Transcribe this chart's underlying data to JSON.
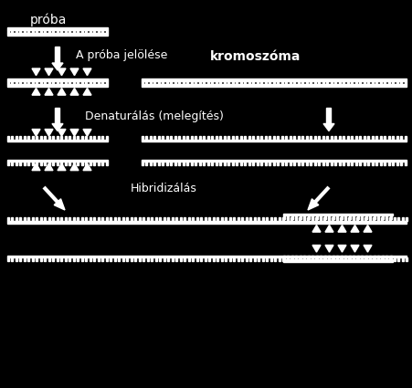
{
  "bg_color": "#000000",
  "fg_color": "#ffffff",
  "title_proba": "próba",
  "title_kromoszoma": "kromoszóma",
  "label_jeloles": "A próba jelölése",
  "label_denaturals": "Denaturálás (melegítés)",
  "label_hibridizalas": "Hibridizálás",
  "fig_width": 4.52,
  "fig_height": 4.25,
  "dpi": 100
}
